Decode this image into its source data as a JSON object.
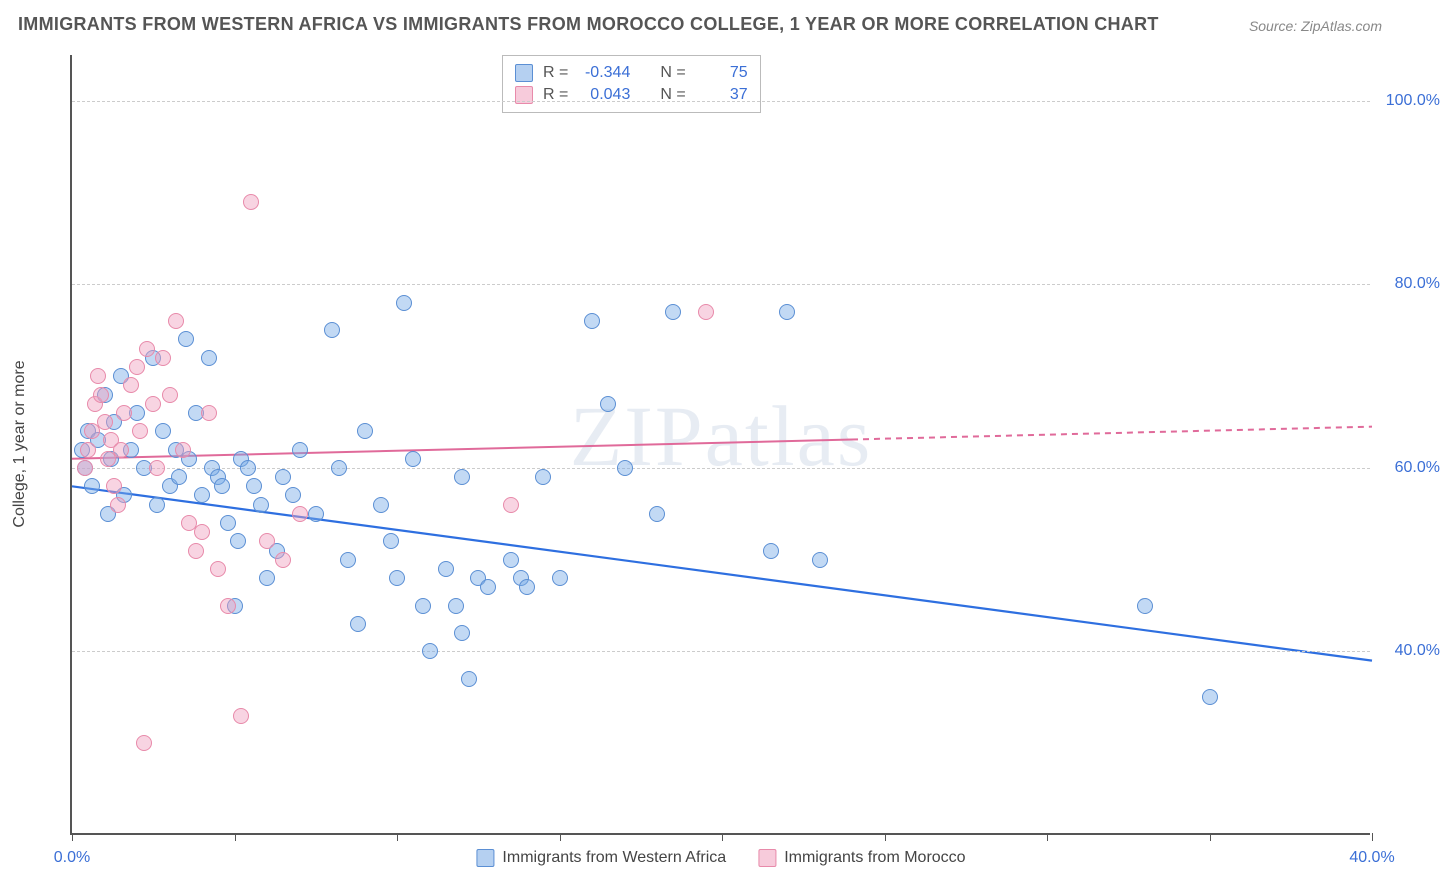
{
  "title": "IMMIGRANTS FROM WESTERN AFRICA VS IMMIGRANTS FROM MOROCCO COLLEGE, 1 YEAR OR MORE CORRELATION CHART",
  "source": "Source: ZipAtlas.com",
  "watermark": "ZIPatlas",
  "chart": {
    "type": "scatter",
    "yaxis_title": "College, 1 year or more",
    "xlim": [
      0,
      40
    ],
    "ylim": [
      20,
      105
    ],
    "xticks": [
      0,
      5,
      10,
      15,
      20,
      25,
      30,
      35,
      40
    ],
    "xtick_labels": {
      "0": "0.0%",
      "40": "40.0%"
    },
    "yticks": [
      40,
      60,
      80,
      100
    ],
    "ytick_labels": {
      "40": "40.0%",
      "60": "60.0%",
      "80": "80.0%",
      "100": "100.0%"
    },
    "grid_color": "#cccccc",
    "axis_color": "#555555",
    "background_color": "#ffffff",
    "tick_label_color": "#3b6fd6",
    "series": [
      {
        "name": "Immigrants from Western Africa",
        "color_fill": "rgba(120,170,230,0.45)",
        "color_stroke": "#5b8fd4",
        "marker": "circle",
        "marker_size": 16,
        "R": "-0.344",
        "N": "75",
        "trend": {
          "x1": 0,
          "y1": 58,
          "x2": 40,
          "y2": 39,
          "stroke": "#2e6fe0",
          "width": 2.2,
          "dash_from_x": null
        },
        "points": [
          [
            0.3,
            62
          ],
          [
            0.4,
            60
          ],
          [
            0.5,
            64
          ],
          [
            0.6,
            58
          ],
          [
            0.8,
            63
          ],
          [
            1.0,
            68
          ],
          [
            1.1,
            55
          ],
          [
            1.2,
            61
          ],
          [
            1.3,
            65
          ],
          [
            1.5,
            70
          ],
          [
            1.6,
            57
          ],
          [
            1.8,
            62
          ],
          [
            2.0,
            66
          ],
          [
            2.2,
            60
          ],
          [
            2.5,
            72
          ],
          [
            2.6,
            56
          ],
          [
            2.8,
            64
          ],
          [
            3.0,
            58
          ],
          [
            3.2,
            62
          ],
          [
            3.5,
            74
          ],
          [
            3.6,
            61
          ],
          [
            3.8,
            66
          ],
          [
            4.0,
            57
          ],
          [
            4.2,
            72
          ],
          [
            4.3,
            60
          ],
          [
            4.5,
            59
          ],
          [
            4.6,
            58
          ],
          [
            5.0,
            45
          ],
          [
            5.1,
            52
          ],
          [
            5.2,
            61
          ],
          [
            5.4,
            60
          ],
          [
            5.6,
            58
          ],
          [
            5.8,
            56
          ],
          [
            6.0,
            48
          ],
          [
            6.3,
            51
          ],
          [
            6.5,
            59
          ],
          [
            6.8,
            57
          ],
          [
            7.0,
            62
          ],
          [
            7.5,
            55
          ],
          [
            8.0,
            75
          ],
          [
            8.2,
            60
          ],
          [
            8.5,
            50
          ],
          [
            8.8,
            43
          ],
          [
            9.0,
            64
          ],
          [
            9.5,
            56
          ],
          [
            9.8,
            52
          ],
          [
            10.0,
            48
          ],
          [
            10.2,
            78
          ],
          [
            10.5,
            61
          ],
          [
            10.8,
            45
          ],
          [
            11.0,
            40
          ],
          [
            11.5,
            49
          ],
          [
            11.8,
            45
          ],
          [
            12.0,
            42
          ],
          [
            12.0,
            59
          ],
          [
            12.2,
            37
          ],
          [
            12.5,
            48
          ],
          [
            12.8,
            47
          ],
          [
            13.5,
            50
          ],
          [
            13.8,
            48
          ],
          [
            14.0,
            47
          ],
          [
            14.5,
            59
          ],
          [
            15.0,
            48
          ],
          [
            16.0,
            76
          ],
          [
            16.5,
            67
          ],
          [
            17.0,
            60
          ],
          [
            18.0,
            55
          ],
          [
            21.5,
            51
          ],
          [
            22.0,
            77
          ],
          [
            23.0,
            50
          ],
          [
            33.0,
            45
          ],
          [
            35.0,
            35
          ],
          [
            18.5,
            77
          ],
          [
            4.8,
            54
          ],
          [
            3.3,
            59
          ]
        ]
      },
      {
        "name": "Immigrants from Morocco",
        "color_fill": "rgba(240,160,190,0.45)",
        "color_stroke": "#e88aaa",
        "marker": "circle",
        "marker_size": 16,
        "R": "0.043",
        "N": "37",
        "trend": {
          "x1": 0,
          "y1": 61,
          "x2": 40,
          "y2": 64.5,
          "stroke": "#e06a9a",
          "width": 2,
          "dash_from_x": 24
        },
        "points": [
          [
            0.4,
            60
          ],
          [
            0.5,
            62
          ],
          [
            0.6,
            64
          ],
          [
            0.7,
            67
          ],
          [
            0.8,
            70
          ],
          [
            0.9,
            68
          ],
          [
            1.0,
            65
          ],
          [
            1.1,
            61
          ],
          [
            1.2,
            63
          ],
          [
            1.3,
            58
          ],
          [
            1.4,
            56
          ],
          [
            1.5,
            62
          ],
          [
            1.6,
            66
          ],
          [
            1.8,
            69
          ],
          [
            2.0,
            71
          ],
          [
            2.1,
            64
          ],
          [
            2.3,
            73
          ],
          [
            2.5,
            67
          ],
          [
            2.6,
            60
          ],
          [
            2.8,
            72
          ],
          [
            3.0,
            68
          ],
          [
            3.2,
            76
          ],
          [
            3.4,
            62
          ],
          [
            3.6,
            54
          ],
          [
            3.8,
            51
          ],
          [
            4.0,
            53
          ],
          [
            4.2,
            66
          ],
          [
            4.5,
            49
          ],
          [
            4.8,
            45
          ],
          [
            5.2,
            33
          ],
          [
            5.5,
            89
          ],
          [
            6.0,
            52
          ],
          [
            6.5,
            50
          ],
          [
            7.0,
            55
          ],
          [
            13.5,
            56
          ],
          [
            19.5,
            77
          ],
          [
            2.2,
            30
          ]
        ]
      }
    ],
    "legend_top": {
      "R_label": "R =",
      "N_label": "N ="
    },
    "legend_bottom": [
      {
        "swatch": "blue",
        "label": "Immigrants from Western Africa"
      },
      {
        "swatch": "pink",
        "label": "Immigrants from Morocco"
      }
    ]
  }
}
